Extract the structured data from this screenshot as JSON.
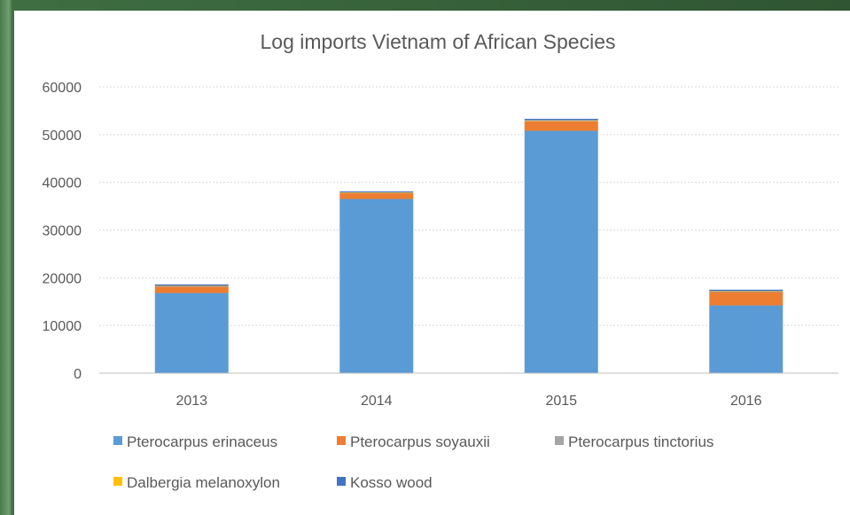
{
  "chart_data": {
    "type": "bar",
    "stacked": true,
    "title": "Log imports Vietnam of African Species",
    "xlabel": "",
    "ylabel": "",
    "categories": [
      "2013",
      "2014",
      "2015",
      "2016"
    ],
    "ylim": [
      0,
      60000
    ],
    "yticks": [
      0,
      10000,
      20000,
      30000,
      40000,
      50000,
      60000
    ],
    "ytick_labels": [
      "0",
      "10000",
      "20000",
      "30000",
      "40000",
      "50000",
      "60000"
    ],
    "grid": true,
    "legend_position": "bottom",
    "series": [
      {
        "name": "Pterocarpus erinaceus",
        "color": "#5b9bd5",
        "values": [
          16800,
          36500,
          50800,
          14200
        ]
      },
      {
        "name": "Pterocarpus soyauxii",
        "color": "#ed7d31",
        "values": [
          1300,
          1200,
          2000,
          2800
        ]
      },
      {
        "name": "Pterocarpus tinctorius",
        "color": "#a5a5a5",
        "values": [
          100,
          100,
          100,
          100
        ]
      },
      {
        "name": "Dalbergia melanoxylon",
        "color": "#ffc000",
        "values": [
          100,
          100,
          100,
          100
        ]
      },
      {
        "name": "Kosso wood",
        "color": "#4472c4",
        "values": [
          300,
          200,
          300,
          300
        ]
      }
    ]
  }
}
